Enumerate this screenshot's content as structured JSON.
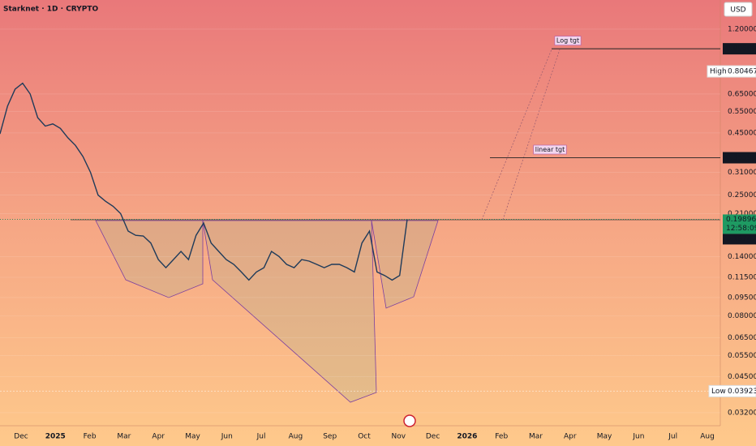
{
  "chart_data": {
    "type": "line",
    "title": "Starknet · 1D · CRYPTO",
    "currency": "USD",
    "log_scale": true,
    "color": "#1f3b5a",
    "values": [
      0.446,
      0.58,
      0.68,
      0.72,
      0.65,
      0.52,
      0.48,
      0.49,
      0.47,
      0.43,
      0.4,
      0.36,
      0.31,
      0.25,
      0.236,
      0.225,
      0.21,
      0.178,
      0.171,
      0.17,
      0.159,
      0.136,
      0.126,
      0.136,
      0.147,
      0.136,
      0.171,
      0.192,
      0.159,
      0.147,
      0.136,
      0.13,
      0.121,
      0.112,
      0.121,
      0.126,
      0.147,
      0.14,
      0.13,
      0.126,
      0.136,
      0.134,
      0.13,
      0.126,
      0.13,
      0.13,
      0.126,
      0.121,
      0.159,
      0.178,
      0.121,
      0.117,
      0.112,
      0.117,
      0.199
    ],
    "ylim": [
      0.0283,
      1.58
    ],
    "yticks": [
      {
        "value": 1.2,
        "label": "1.20000"
      },
      {
        "value": 0.65,
        "label": "0.65000"
      },
      {
        "value": 0.55,
        "label": "0.55000"
      },
      {
        "value": 0.45,
        "label": "0.45000"
      },
      {
        "value": 0.31,
        "label": "0.31000"
      },
      {
        "value": 0.25,
        "label": "0.25000"
      },
      {
        "value": 0.21,
        "label": "0.21000"
      },
      {
        "value": 0.14,
        "label": "0.14000"
      },
      {
        "value": 0.115,
        "label": "0.11500"
      },
      {
        "value": 0.095,
        "label": "0.09500"
      },
      {
        "value": 0.08,
        "label": "0.08000"
      },
      {
        "value": 0.065,
        "label": "0.06500"
      },
      {
        "value": 0.055,
        "label": "0.05500"
      },
      {
        "value": 0.045,
        "label": "0.04500"
      },
      {
        "value": 0.032,
        "label": "0.03200"
      }
    ],
    "x_labels": [
      "Dec",
      "2025",
      "Feb",
      "Mar",
      "Apr",
      "May",
      "Jun",
      "Jul",
      "Aug",
      "Sep",
      "Oct",
      "Nov",
      "Dec",
      "2026",
      "Feb",
      "Mar",
      "Apr",
      "May",
      "Jun",
      "Jul",
      "Aug"
    ],
    "annotations": [
      {
        "text": "Log tgt",
        "value": 0.99669
      },
      {
        "text": "linear tgt",
        "value": 0.35598
      }
    ],
    "high": {
      "label": "High",
      "value": 0.80467
    },
    "low": {
      "label": "Low",
      "value": 0.03923
    },
    "last_price": 0.19896,
    "countdown": "12:58:09",
    "prev_close": 0.19747
  }
}
